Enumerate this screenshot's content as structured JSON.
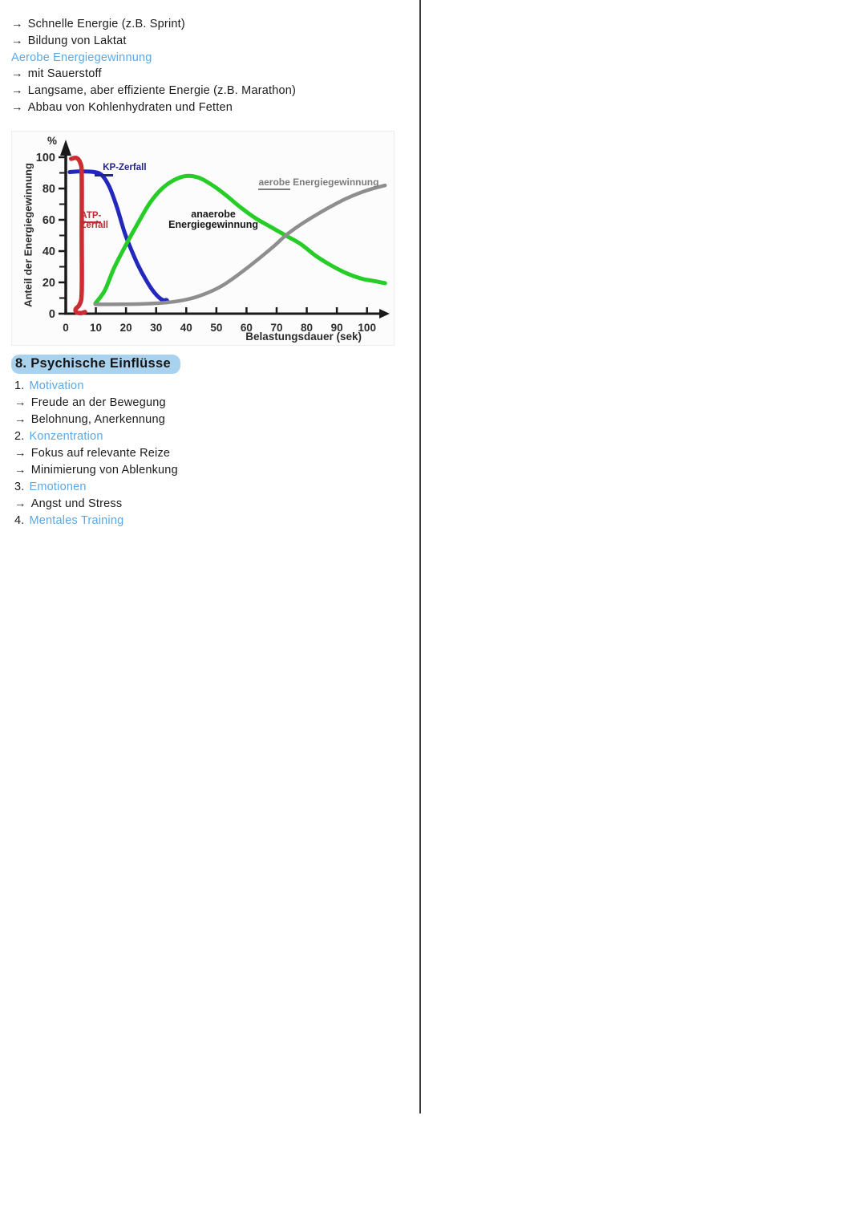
{
  "page": {
    "divider_color": "#3a3a3a"
  },
  "notes_top": {
    "lines": [
      {
        "prefix": "→",
        "text": "Schnelle Energie (z.B. Sprint)"
      },
      {
        "prefix": "→",
        "text": "Bildung von Laktat"
      },
      {
        "prefix": "",
        "text": "Aerobe Energiegewinnung"
      },
      {
        "prefix": "→",
        "text": "mit Sauerstoff"
      },
      {
        "prefix": "→",
        "text": "Langsame, aber effiziente Energie (z.B. Marathon)"
      },
      {
        "prefix": "→",
        "text": "Abbau von Kohlenhydraten und Fetten"
      }
    ]
  },
  "section8": {
    "heading": "8. Psychische Einflüsse",
    "highlight_color": "#a9d2ee",
    "items": [
      {
        "prefix": "1.",
        "text": "Motivation",
        "style": "keyword"
      },
      {
        "prefix": "→",
        "text": "Freude an der Bewegung",
        "style": "plain"
      },
      {
        "prefix": "→",
        "text": "Belohnung, Anerkennung",
        "style": "plain"
      },
      {
        "prefix": "2.",
        "text": "Konzentration",
        "style": "keyword"
      },
      {
        "prefix": "→",
        "text": "Fokus auf relevante Reize",
        "style": "plain"
      },
      {
        "prefix": "→",
        "text": "Minimierung von Ablenkung",
        "style": "plain"
      },
      {
        "prefix": "3.",
        "text": "Emotionen",
        "style": "keyword"
      },
      {
        "prefix": "→",
        "text": "Angst und Stress",
        "style": "plain"
      },
      {
        "prefix": "4.",
        "text": "Mentales Training",
        "style": "keyword"
      }
    ]
  },
  "chart_data": {
    "type": "line",
    "x_axis": {
      "label": "Belastungsdauer (sek)",
      "ticks": [
        0,
        10,
        20,
        30,
        40,
        50,
        60,
        70,
        80,
        90,
        100
      ],
      "range": [
        0,
        107
      ]
    },
    "y_axis": {
      "label": "Anteil der Energiegewinnung",
      "unit": "%",
      "ticks": [
        0,
        20,
        40,
        60,
        80,
        100
      ],
      "minor_ticks": [
        10,
        30,
        50,
        70,
        90
      ],
      "range": [
        0,
        105
      ]
    },
    "series": [
      {
        "name": "KP-Zerfall",
        "color": "#2328bd",
        "stroke_width": 5,
        "end_dot": true,
        "points": [
          [
            1.3,
            90.5
          ],
          [
            5,
            91
          ],
          [
            9.5,
            90.5
          ],
          [
            12,
            88.5
          ],
          [
            14.5,
            81
          ],
          [
            17,
            68
          ],
          [
            19.5,
            52
          ],
          [
            21.5,
            42
          ],
          [
            24,
            31
          ],
          [
            26.5,
            22
          ],
          [
            29,
            14.5
          ],
          [
            31.5,
            9.5
          ],
          [
            33.3,
            8
          ]
        ]
      },
      {
        "name": "anaerobe Energiegewinnung",
        "color": "#27cd27",
        "stroke_width": 5,
        "points": [
          [
            9.8,
            6.5
          ],
          [
            13,
            15
          ],
          [
            16,
            29
          ],
          [
            20,
            44
          ],
          [
            24,
            58
          ],
          [
            28,
            71
          ],
          [
            32,
            80
          ],
          [
            36,
            85.5
          ],
          [
            40,
            88
          ],
          [
            44,
            87
          ],
          [
            48,
            83
          ],
          [
            53,
            76
          ],
          [
            58,
            68
          ],
          [
            63,
            61
          ],
          [
            68,
            55.5
          ],
          [
            73,
            50
          ],
          [
            78,
            44.5
          ],
          [
            83,
            37
          ],
          [
            88,
            31
          ],
          [
            93,
            26
          ],
          [
            98,
            22.5
          ],
          [
            102,
            21
          ],
          [
            106,
            19.5
          ]
        ]
      },
      {
        "name": "aerobe Energiegewinnung",
        "color": "#8e8e8e",
        "stroke_width": 4.5,
        "points": [
          [
            9.8,
            6
          ],
          [
            18,
            6
          ],
          [
            26,
            6.3
          ],
          [
            33,
            7
          ],
          [
            40,
            9
          ],
          [
            46,
            12.5
          ],
          [
            52,
            18
          ],
          [
            58,
            26
          ],
          [
            64,
            35
          ],
          [
            69,
            43
          ],
          [
            73,
            50
          ],
          [
            78,
            57
          ],
          [
            83,
            63
          ],
          [
            88,
            68.5
          ],
          [
            93,
            73.5
          ],
          [
            98,
            77.5
          ],
          [
            102,
            80
          ],
          [
            106,
            82
          ]
        ]
      },
      {
        "name": "ATP-Zerfall",
        "color": "#cc2d33",
        "stroke_width": 5.5,
        "points": [
          [
            1.8,
            99
          ],
          [
            3.6,
            99.5
          ],
          [
            4.9,
            96
          ],
          [
            5.3,
            88
          ],
          [
            5.3,
            50
          ],
          [
            5.3,
            14
          ],
          [
            4.6,
            6
          ],
          [
            3.3,
            3
          ],
          [
            3.6,
            0.8
          ],
          [
            5.2,
            0.4
          ],
          [
            6.4,
            1.1
          ]
        ]
      }
    ],
    "annotations": [
      {
        "id": "kp",
        "parts": [
          {
            "t": "KP-Zerfall"
          }
        ],
        "x": 12.3,
        "y": 96.4,
        "color": "#23238f",
        "dash": true
      },
      {
        "id": "atp",
        "parts": [
          {
            "t": "ATP-",
            "u": true
          },
          {
            "t": "Zerfall"
          }
        ],
        "multiline": true,
        "x": 4.9,
        "y": 65.8,
        "color": "#bb2c33"
      },
      {
        "id": "anaerobe",
        "parts": [
          {
            "t": "anaerobe"
          },
          {
            "t": "Energiegewinnung"
          }
        ],
        "multiline": true,
        "align": "center",
        "x": 49,
        "y": 66.5,
        "color": "#161616",
        "size": 12.5
      },
      {
        "id": "aerobe",
        "parts": [
          {
            "t": "aerobe",
            "u": true
          },
          {
            "t": " Energiegewinnung"
          }
        ],
        "x": 64,
        "y": 87,
        "color": "#7d7d7d",
        "size": 12
      }
    ]
  }
}
